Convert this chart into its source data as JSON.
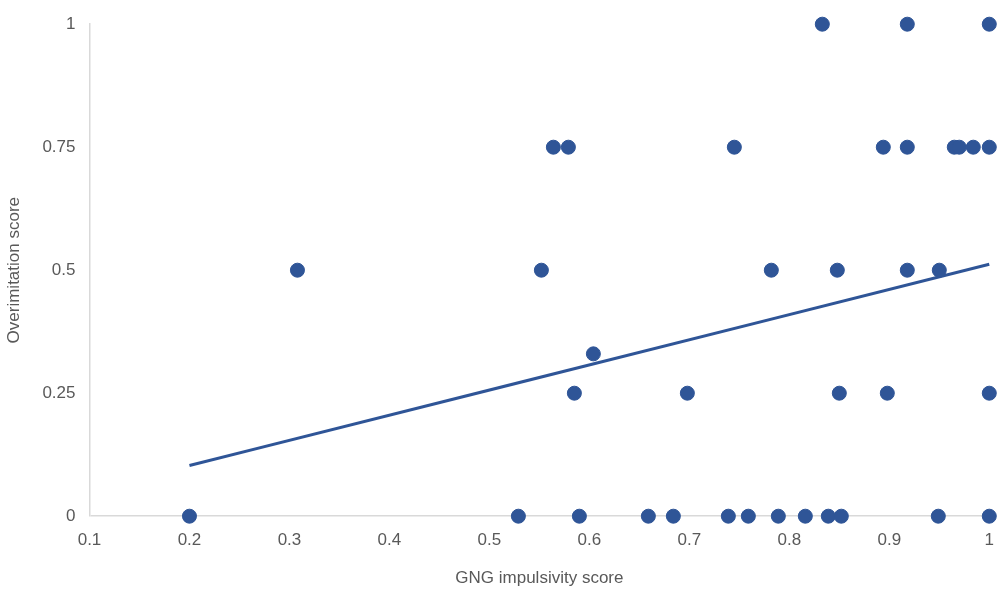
{
  "chart_data": {
    "type": "scatter",
    "xlabel": "GNG impulsivity score",
    "ylabel": "Overimitation score",
    "xlim": [
      0.1,
      1
    ],
    "xticks": [
      0.1,
      0.2,
      0.3,
      0.4,
      0.5,
      0.6,
      0.7,
      0.8,
      0.9,
      1
    ],
    "ylim": [
      0,
      1
    ],
    "yticks": [
      0,
      0.25,
      0.5,
      0.75,
      1
    ],
    "grid": false,
    "legend": false,
    "marker": "circle",
    "series": [
      {
        "color": "#2f5597",
        "x": [
          0.833,
          0.918,
          1.0,
          0.564,
          0.579,
          0.745,
          0.894,
          0.918,
          0.965,
          0.97,
          0.984,
          1.0,
          0.308,
          0.552,
          0.782,
          0.848,
          0.918,
          0.95,
          0.604,
          0.585,
          0.698,
          0.85,
          0.898,
          1.0,
          0.2,
          0.529,
          0.59,
          0.659,
          0.684,
          0.739,
          0.759,
          0.789,
          0.816,
          0.839,
          0.852,
          0.949,
          1.0
        ],
        "values": [
          1,
          1,
          1,
          0.75,
          0.75,
          0.75,
          0.75,
          0.75,
          0.75,
          0.75,
          0.75,
          0.75,
          0.5,
          0.5,
          0.5,
          0.5,
          0.5,
          0.5,
          0.33,
          0.25,
          0.25,
          0.25,
          0.25,
          0.25,
          0,
          0,
          0,
          0,
          0,
          0,
          0,
          0,
          0,
          0,
          0,
          0,
          0
        ]
      },
      {
        "type": "line",
        "color": "#2f5597",
        "x": [
          0.2,
          1.0
        ],
        "values": [
          0.103,
          0.512
        ],
        "line_style": "solid",
        "marker": "none"
      }
    ]
  }
}
